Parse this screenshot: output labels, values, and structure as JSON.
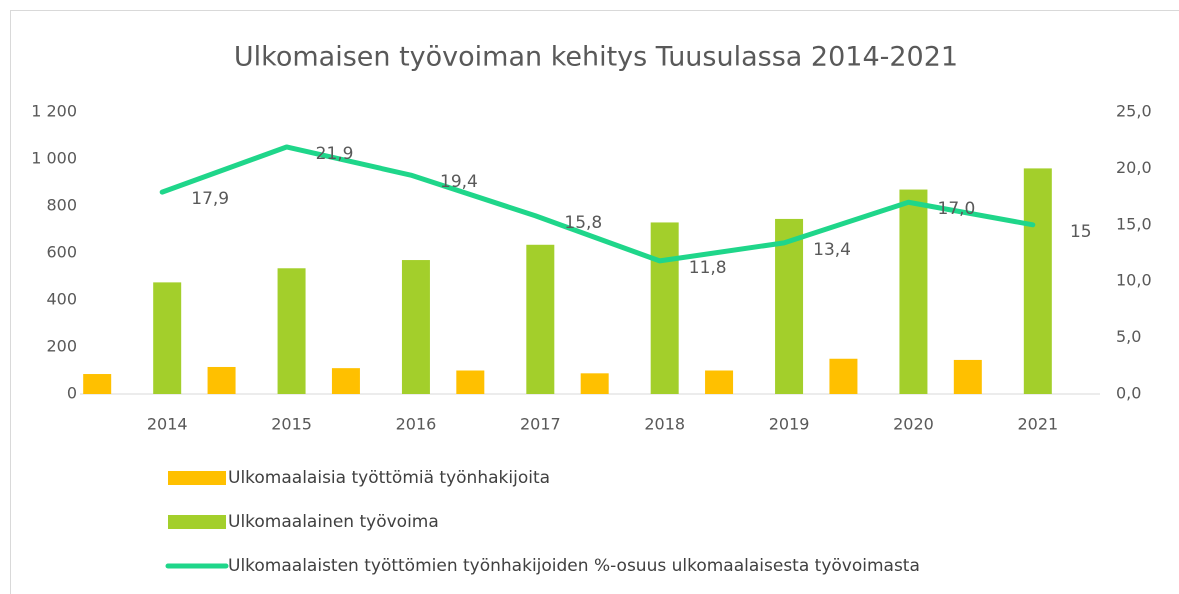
{
  "chart_data": {
    "type": "bar_line",
    "title": "Ulkomaisen työvoiman kehitys Tuusulassa 2014-2021",
    "categories": [
      "2014",
      "2015",
      "2016",
      "2017",
      "2018",
      "2019",
      "2020",
      "2021"
    ],
    "series": [
      {
        "name": "Ulkomaalaisia työttömiä työnhakijoita",
        "color": "#ffc000",
        "type": "bar",
        "values": [
          85,
          115,
          110,
          100,
          88,
          100,
          150,
          145
        ]
      },
      {
        "name": "Ulkomaalainen työvoima",
        "color": "#a3cf2b",
        "type": "bar",
        "values": [
          475,
          535,
          570,
          635,
          730,
          745,
          870,
          960
        ]
      },
      {
        "name": "Ulkomaalaisten työttömien työnhakijoiden %-osuus ulkomaalaisesta työvoimasta",
        "color": "#1fd68a",
        "type": "line",
        "axis": "y2",
        "values": [
          17.9,
          21.9,
          19.4,
          15.8,
          11.8,
          13.4,
          17.0,
          15
        ],
        "value_labels": [
          "17,9",
          "21,9",
          "19,4",
          "15,8",
          "11,8",
          "13,4",
          "17,0",
          "15"
        ]
      }
    ],
    "ylim": [
      0,
      1200
    ],
    "yticks": [
      0,
      200,
      400,
      600,
      800,
      {
        "value": 1000,
        "label": "1 000"
      },
      {
        "value": 1200,
        "label": "1 200"
      }
    ],
    "y2lim": [
      0,
      25
    ],
    "y2ticks": [
      {
        "value": 0,
        "label": "0,0"
      },
      {
        "value": 5,
        "label": "5,0"
      },
      {
        "value": 10,
        "label": "10,0"
      },
      {
        "value": 15,
        "label": "15,0"
      },
      {
        "value": 20,
        "label": "20,0"
      },
      {
        "value": 25,
        "label": "25,0"
      }
    ],
    "grid": false,
    "legend": "bottom"
  }
}
